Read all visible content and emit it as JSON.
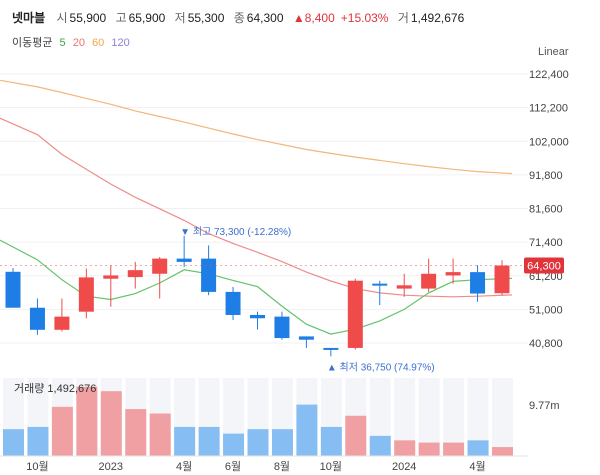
{
  "header": {
    "name": "넷마블",
    "open_label": "시",
    "open": "55,900",
    "high_label": "고",
    "high": "65,900",
    "low_label": "저",
    "low": "55,300",
    "close_label": "종",
    "close": "64,300",
    "change": "8,400",
    "change_pct": "+15.03%",
    "volume_label": "거",
    "volume": "1,492,676"
  },
  "ma_legend": {
    "title": "이동평균",
    "periods": [
      {
        "label": "5",
        "color": "#3aa64a"
      },
      {
        "label": "20",
        "color": "#e9746f"
      },
      {
        "label": "60",
        "color": "#f0a64a"
      },
      {
        "label": "120",
        "color": "#8f7fd6"
      }
    ]
  },
  "scale_type": "Linear",
  "chart_data": {
    "type": "candlestick",
    "title": "넷마블",
    "interval": "monthly",
    "colors": {
      "up": "#ef4b4b",
      "down": "#1f7ee6",
      "vol_up": "#f0a0a2",
      "vol_down": "#86bdf2"
    },
    "y_ticks": [
      122400,
      112200,
      102000,
      91800,
      81600,
      71400,
      61200,
      51000,
      40800
    ],
    "y_tick_labels": [
      "122,400",
      "112,200",
      "102,000",
      "91,800",
      "81,600",
      "71,400",
      "61,200",
      "51,000",
      "40,800"
    ],
    "x_tick_labels": [
      "10월",
      "2023",
      "4월",
      "6월",
      "8월",
      "10월",
      "2024",
      "4월"
    ],
    "candles": [
      {
        "o": 62400,
        "h": 63500,
        "l": 51500,
        "c": 51500
      },
      {
        "o": 51500,
        "h": 54300,
        "l": 43300,
        "c": 44800
      },
      {
        "o": 44800,
        "h": 54300,
        "l": 44300,
        "c": 48800
      },
      {
        "o": 50300,
        "h": 63400,
        "l": 48300,
        "c": 60700
      },
      {
        "o": 60300,
        "h": 64400,
        "l": 51800,
        "c": 61300
      },
      {
        "o": 60800,
        "h": 65400,
        "l": 57300,
        "c": 62900
      },
      {
        "o": 61800,
        "h": 66900,
        "l": 54300,
        "c": 66400
      },
      {
        "o": 66400,
        "h": 73300,
        "l": 63900,
        "c": 65400
      },
      {
        "o": 66400,
        "h": 70400,
        "l": 55300,
        "c": 56300
      },
      {
        "o": 56300,
        "h": 57800,
        "l": 47800,
        "c": 49300
      },
      {
        "o": 49300,
        "h": 50300,
        "l": 44900,
        "c": 48300
      },
      {
        "o": 48800,
        "h": 50300,
        "l": 41800,
        "c": 42300
      },
      {
        "o": 42800,
        "h": 42800,
        "l": 39300,
        "c": 41800
      },
      {
        "o": 39300,
        "h": 39300,
        "l": 36750,
        "c": 38800
      },
      {
        "o": 39300,
        "h": 60300,
        "l": 38800,
        "c": 59700
      },
      {
        "o": 58800,
        "h": 59700,
        "l": 52300,
        "c": 58300
      },
      {
        "o": 57300,
        "h": 61800,
        "l": 54800,
        "c": 58300
      },
      {
        "o": 57300,
        "h": 66400,
        "l": 56300,
        "c": 61800
      },
      {
        "o": 61300,
        "h": 66400,
        "l": 58800,
        "c": 62300
      },
      {
        "o": 62300,
        "h": 64400,
        "l": 53300,
        "c": 55800
      },
      {
        "o": 55900,
        "h": 65900,
        "l": 55300,
        "c": 64300
      }
    ],
    "volume": [
      12,
      13,
      22,
      31,
      29,
      21,
      19,
      13,
      13,
      10,
      12,
      12,
      23,
      13,
      18,
      9,
      7,
      6,
      6,
      7,
      4
    ],
    "moving_averages": {
      "ma5": [
        72000,
        66000,
        60000,
        55000,
        54000,
        55800,
        59000,
        63000,
        61800,
        59800,
        57900,
        52000,
        46500,
        43500,
        45000,
        47500,
        51000,
        56000,
        59500,
        60000,
        60400
      ],
      "ma20": [
        109000,
        104000,
        98000,
        93500,
        89000,
        85000,
        81500,
        78000,
        74000,
        71000,
        68300,
        65500,
        62300,
        59600,
        57300,
        56000,
        55300,
        55000,
        54800,
        55000,
        55400
      ],
      "ma60": [
        120500,
        118500,
        116800,
        115000,
        113200,
        111200,
        109500,
        107800,
        106000,
        104200,
        102500,
        101000,
        99500,
        98300,
        97200,
        96200,
        95200,
        94300,
        93500,
        92800,
        92200
      ],
      "ma120": []
    },
    "annotations": {
      "max": {
        "text": "최고 73,300 (-12.28%)",
        "index": 7
      },
      "min": {
        "text": "최저 36,750 (74.97%)",
        "index": 13
      },
      "last_price": "64,300"
    },
    "volume_label": "거래량 1,492,676",
    "volume_scale_label": "9.77m"
  }
}
